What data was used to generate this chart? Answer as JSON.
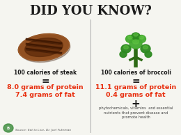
{
  "title": "DID YOU KNOW?",
  "title_fontsize": 13,
  "title_color": "#1a1a1a",
  "bg_color": "#f5f5f0",
  "divider_color": "#aaaaaa",
  "left_header": "100 calories of steak",
  "left_equals": "=",
  "left_line1": "8.0 grams of protein",
  "left_line2": "7.4 grams of fat",
  "right_header": "100 calories of broccoli",
  "right_equals": "=",
  "right_line1": "11.1 grams of protein",
  "right_line2": "0.4 grams of fat",
  "right_plus": "+",
  "right_extra": "phytochemicals, vitamins  and essential\nnutrients that prevent disease and\npromote health",
  "source_text": "Source: Eat to Live, Dr. Joel Fuhrman",
  "header_color": "#1a1a1a",
  "equals_color": "#1a1a1a",
  "data_color": "#e83010",
  "extra_color": "#444444",
  "source_color": "#555555",
  "header_fontsize": 5.5,
  "data_fontsize": 6.8,
  "equals_fontsize": 10,
  "plus_fontsize": 11,
  "extra_fontsize": 3.8,
  "source_fontsize": 3.2,
  "steak_color1": "#7a3a10",
  "steak_color2": "#5a2808",
  "steak_color3": "#3a1500",
  "broc_green1": "#2d8a20",
  "broc_green2": "#44aa30",
  "broc_stem": "#2d6a15"
}
